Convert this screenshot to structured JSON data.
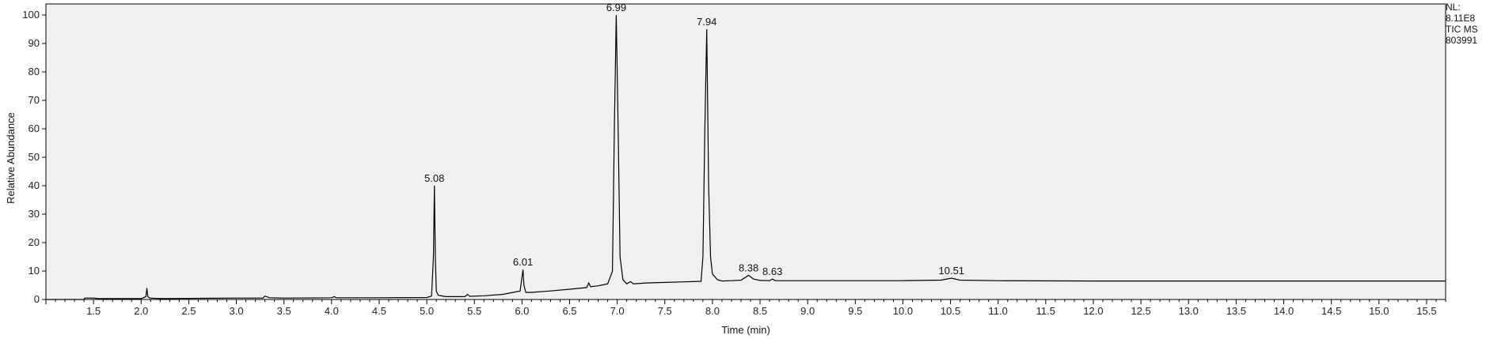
{
  "chart_data": {
    "type": "line",
    "title": "",
    "xlabel": "Time (min)",
    "ylabel": "Relative Abundance",
    "xlim": [
      1.0,
      15.7
    ],
    "ylim": [
      0,
      100
    ],
    "x_ticks": [
      1.5,
      2.0,
      2.5,
      3.0,
      3.5,
      4.0,
      4.5,
      5.0,
      5.5,
      6.0,
      6.5,
      7.0,
      7.5,
      8.0,
      8.5,
      9.0,
      9.5,
      10.0,
      10.5,
      11.0,
      11.5,
      12.0,
      12.5,
      13.0,
      13.5,
      14.0,
      14.5,
      15.0,
      15.5
    ],
    "y_ticks": [
      0,
      10,
      20,
      30,
      40,
      50,
      60,
      70,
      80,
      90,
      100
    ],
    "grid": false,
    "series": [
      {
        "x": [
          1.0,
          1.4,
          1.41,
          1.5,
          1.55,
          2.0,
          2.05,
          2.06,
          2.07,
          2.09,
          2.2,
          2.5,
          3.0,
          3.28,
          3.3,
          3.35,
          3.5,
          4.0,
          4.03,
          4.05,
          4.5,
          5.0,
          5.05,
          5.07,
          5.08,
          5.09,
          5.1,
          5.12,
          5.2,
          5.4,
          5.43,
          5.45,
          5.6,
          5.8,
          5.98,
          6.0,
          6.01,
          6.02,
          6.04,
          6.1,
          6.3,
          6.5,
          6.68,
          6.7,
          6.72,
          6.8,
          6.9,
          6.95,
          6.97,
          6.99,
          7.01,
          7.03,
          7.06,
          7.1,
          7.14,
          7.17,
          7.3,
          7.5,
          7.7,
          7.88,
          7.9,
          7.92,
          7.94,
          7.96,
          7.98,
          8.0,
          8.05,
          8.1,
          8.2,
          8.3,
          8.38,
          8.43,
          8.5,
          8.6,
          8.63,
          8.66,
          8.8,
          9.0,
          9.5,
          10.0,
          10.4,
          10.51,
          10.6,
          11.0,
          12.0,
          13.0,
          14.0,
          15.0,
          15.7
        ],
        "values": [
          0,
          0,
          0.5,
          0.5,
          0.3,
          0.3,
          1.0,
          4.0,
          1.0,
          0.5,
          0.3,
          0.4,
          0.5,
          0.5,
          1.2,
          0.6,
          0.5,
          0.6,
          1.0,
          0.6,
          0.6,
          0.7,
          1.2,
          15.0,
          40.0,
          15.0,
          3.0,
          1.5,
          1.0,
          1.0,
          1.8,
          1.1,
          1.3,
          1.8,
          3.0,
          8.0,
          10.5,
          5.0,
          2.5,
          2.5,
          3.0,
          3.6,
          4.2,
          5.8,
          4.5,
          4.8,
          5.5,
          10.0,
          60.0,
          100.0,
          60.0,
          15.0,
          7.0,
          5.5,
          6.3,
          5.5,
          5.8,
          6.0,
          6.2,
          6.4,
          15.0,
          60.0,
          95.0,
          40.0,
          15.0,
          9.0,
          7.0,
          6.5,
          6.6,
          6.8,
          8.5,
          7.2,
          6.7,
          6.6,
          7.2,
          6.6,
          6.6,
          6.6,
          6.6,
          6.6,
          6.8,
          7.5,
          6.8,
          6.6,
          6.5,
          6.5,
          6.5,
          6.5,
          6.5
        ]
      }
    ],
    "peak_labels": [
      {
        "x": 5.08,
        "y": 40,
        "text": "5.08"
      },
      {
        "x": 6.01,
        "y": 10.5,
        "text": "6.01"
      },
      {
        "x": 6.99,
        "y": 100,
        "text": "6.99"
      },
      {
        "x": 7.94,
        "y": 95,
        "text": "7.94"
      },
      {
        "x": 8.38,
        "y": 8.5,
        "text": "8.38"
      },
      {
        "x": 8.63,
        "y": 7.2,
        "text": "8.63"
      },
      {
        "x": 10.51,
        "y": 7.5,
        "text": "10.51"
      }
    ],
    "colors": {
      "plot_background": "#f0f0f0",
      "line": "#000000",
      "axis": "#000000"
    }
  },
  "side_info": {
    "nl_label": "NL:",
    "nl_value": "8.11E8",
    "trace": "TIC  MS",
    "sample": "803991"
  }
}
